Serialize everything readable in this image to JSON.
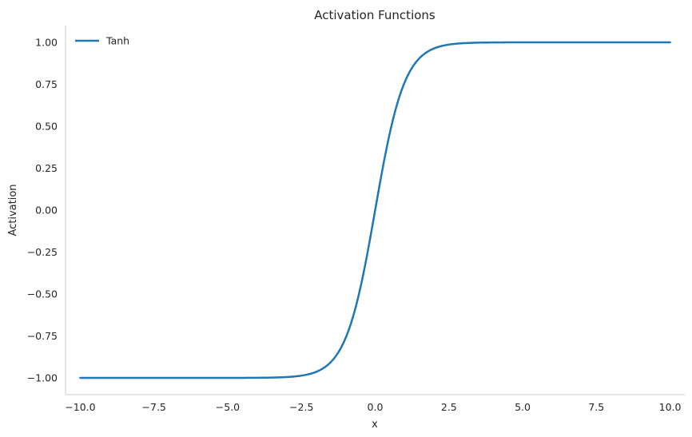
{
  "chart_data": {
    "type": "line",
    "title": "Activation Functions",
    "xlabel": "x",
    "ylabel": "Activation",
    "xlim": [
      -10.5,
      10.5
    ],
    "ylim": [
      -1.1,
      1.1
    ],
    "x_ticks": [
      -10.0,
      -7.5,
      -5.0,
      -2.5,
      0.0,
      2.5,
      5.0,
      7.5,
      10.0
    ],
    "x_tick_labels": [
      "−10.0",
      "−7.5",
      "−5.0",
      "−2.5",
      "0.0",
      "2.5",
      "5.0",
      "7.5",
      "10.0"
    ],
    "y_ticks": [
      1.0,
      0.75,
      0.5,
      0.25,
      0.0,
      -0.25,
      -0.5,
      -0.75,
      -1.0
    ],
    "y_tick_labels": [
      "1.00",
      "0.75",
      "0.50",
      "0.25",
      "0.00",
      "−0.25",
      "−0.50",
      "−0.75",
      "−1.00"
    ],
    "grid": false,
    "legend_position": "top-left",
    "series": [
      {
        "name": "Tanh",
        "color": "#1f77b4",
        "x": [
          -10,
          -5,
          -4,
          -3,
          -2.5,
          -2,
          -1.75,
          -1.5,
          -1.25,
          -1,
          -0.75,
          -0.5,
          -0.25,
          0,
          0.25,
          0.5,
          0.75,
          1,
          1.25,
          1.5,
          1.75,
          2,
          2.5,
          3,
          4,
          5,
          10
        ],
        "y": [
          -1.0,
          -0.9999,
          -0.9993,
          -0.9951,
          -0.9866,
          -0.964,
          -0.9414,
          -0.9051,
          -0.8483,
          -0.7616,
          -0.6351,
          -0.4621,
          -0.2449,
          0.0,
          0.2449,
          0.4621,
          0.6351,
          0.7616,
          0.8483,
          0.9051,
          0.9414,
          0.964,
          0.9866,
          0.9951,
          0.9993,
          0.9999,
          1.0
        ]
      }
    ]
  }
}
